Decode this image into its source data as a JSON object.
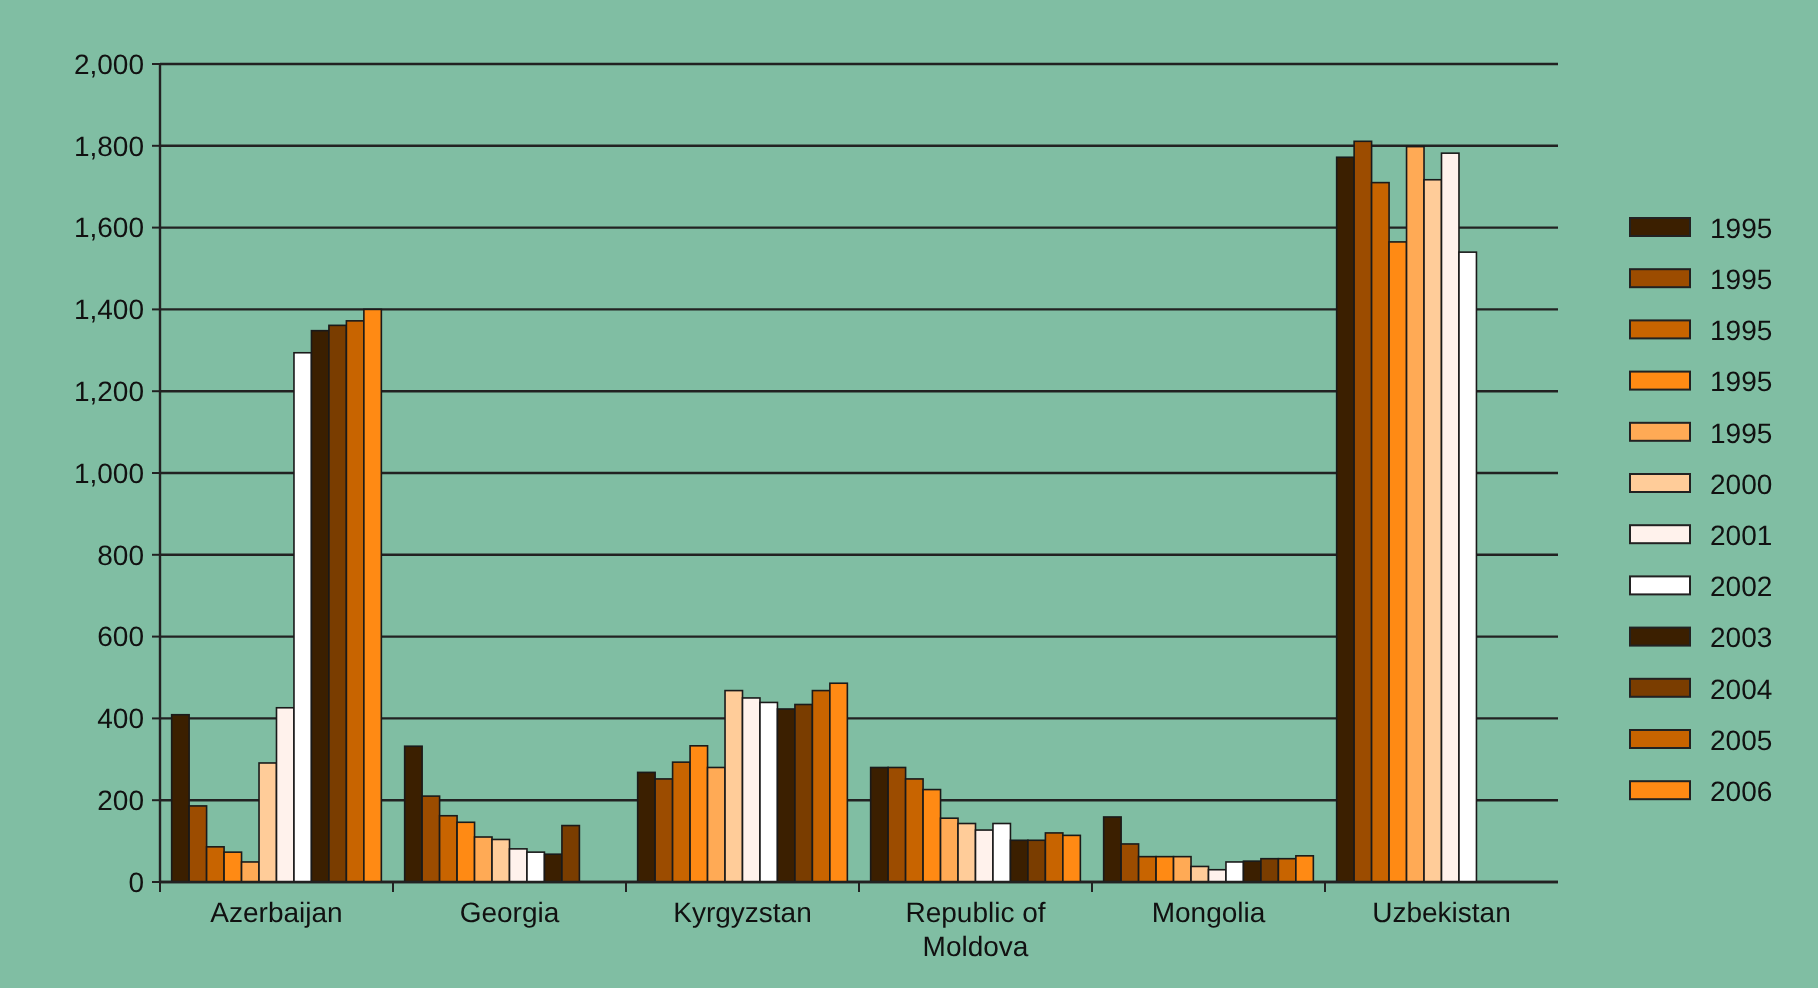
{
  "chart_data": {
    "type": "bar",
    "categories": [
      "Azerbaijan",
      "Georgia",
      "Kyrgyzstan",
      "Republic of Moldova",
      "Mongolia",
      "Uzbekistan"
    ],
    "series": [
      {
        "name": "1995",
        "color": "#3b1f00",
        "values": [
          409,
          332,
          268,
          280,
          159,
          1772
        ]
      },
      {
        "name": "1995",
        "color": "#9c4c00",
        "values": [
          186,
          210,
          252,
          280,
          93,
          1811
        ]
      },
      {
        "name": "1995",
        "color": "#c86400",
        "values": [
          86,
          162,
          293,
          252,
          62,
          1710
        ]
      },
      {
        "name": "1995",
        "color": "#ff8a14",
        "values": [
          73,
          146,
          333,
          226,
          62,
          1565
        ]
      },
      {
        "name": "1995",
        "color": "#ffaa55",
        "values": [
          49,
          110,
          280,
          156,
          62,
          1798
        ]
      },
      {
        "name": "2000",
        "color": "#ffcc99",
        "values": [
          291,
          104,
          468,
          143,
          38,
          1717
        ]
      },
      {
        "name": "2001",
        "color": "#fff2ec",
        "values": [
          426,
          81,
          450,
          127,
          30,
          1782
        ]
      },
      {
        "name": "2002",
        "color": "#ffffff",
        "values": [
          1294,
          73,
          439,
          143,
          49,
          1540
        ]
      },
      {
        "name": "2003",
        "color": "#3b1f00",
        "values": [
          1348,
          68,
          423,
          102,
          51,
          null
        ]
      },
      {
        "name": "2004",
        "color": "#7a3d00",
        "values": [
          1361,
          138,
          434,
          102,
          57,
          null
        ]
      },
      {
        "name": "2005",
        "color": "#c86400",
        "values": [
          1372,
          null,
          468,
          120,
          57,
          null
        ]
      },
      {
        "name": "2006",
        "color": "#ff8a14",
        "values": [
          1400,
          null,
          486,
          114,
          64,
          null
        ]
      }
    ],
    "ylim": [
      0,
      2000
    ],
    "yticks": [
      {
        "value": 0,
        "label": "0"
      },
      {
        "value": 200,
        "label": "200"
      },
      {
        "value": 400,
        "label": "400"
      },
      {
        "value": 600,
        "label": "600"
      },
      {
        "value": 800,
        "label": "800"
      },
      {
        "value": 1000,
        "label": "1,000"
      },
      {
        "value": 1200,
        "label": "1,200"
      },
      {
        "value": 1400,
        "label": "1,400"
      },
      {
        "value": 1600,
        "label": "1,600"
      },
      {
        "value": 1800,
        "label": "1,800"
      },
      {
        "value": 2000,
        "label": "2,000"
      }
    ],
    "grid": "y",
    "legend": "right"
  }
}
